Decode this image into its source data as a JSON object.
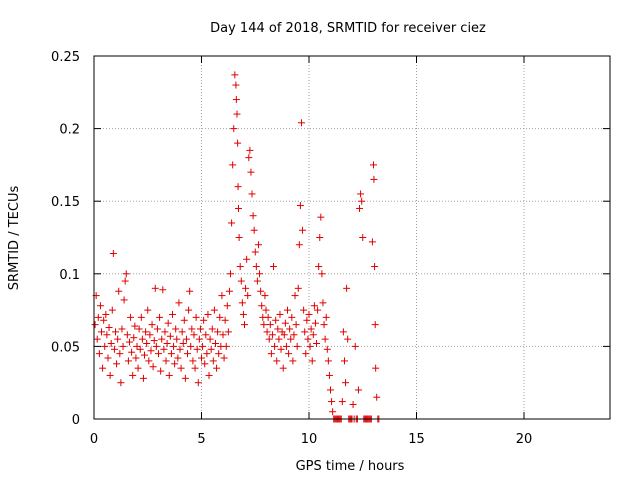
{
  "chart_data": {
    "type": "scatter",
    "title": "Day 144 of 2018, SRMTID for receiver ciez",
    "xlabel": "GPS time / hours",
    "ylabel": "SRMTID / TECUs",
    "xlim": [
      0,
      24
    ],
    "ylim": [
      0,
      0.25
    ],
    "xticks": [
      0,
      5,
      10,
      15,
      20
    ],
    "xtick_labels": [
      "0",
      "5",
      "10",
      "15",
      "20"
    ],
    "yticks": [
      0,
      0.05,
      0.1,
      0.15,
      0.2,
      0.25
    ],
    "ytick_labels": [
      "0",
      "0.05",
      "0.1",
      "0.15",
      "0.2",
      "0.25"
    ],
    "grid": true,
    "marker": "plus",
    "color": "#e00000",
    "series": [
      {
        "name": "SRMTID",
        "points": [
          [
            0.05,
            0.065
          ],
          [
            0.1,
            0.085
          ],
          [
            0.15,
            0.055
          ],
          [
            0.2,
            0.07
          ],
          [
            0.25,
            0.045
          ],
          [
            0.3,
            0.078
          ],
          [
            0.35,
            0.06
          ],
          [
            0.4,
            0.035
          ],
          [
            0.45,
            0.068
          ],
          [
            0.5,
            0.05
          ],
          [
            0.55,
            0.072
          ],
          [
            0.6,
            0.058
          ],
          [
            0.65,
            0.042
          ],
          [
            0.7,
            0.063
          ],
          [
            0.75,
            0.03
          ],
          [
            0.8,
            0.052
          ],
          [
            0.85,
            0.075
          ],
          [
            0.9,
            0.114
          ],
          [
            0.95,
            0.048
          ],
          [
            1.0,
            0.06
          ],
          [
            1.05,
            0.038
          ],
          [
            1.1,
            0.055
          ],
          [
            1.15,
            0.088
          ],
          [
            1.2,
            0.045
          ],
          [
            1.25,
            0.025
          ],
          [
            1.3,
            0.062
          ],
          [
            1.35,
            0.05
          ],
          [
            1.4,
            0.082
          ],
          [
            1.45,
            0.095
          ],
          [
            1.5,
            0.1
          ],
          [
            1.55,
            0.058
          ],
          [
            1.6,
            0.04
          ],
          [
            1.65,
            0.053
          ],
          [
            1.7,
            0.07
          ],
          [
            1.75,
            0.046
          ],
          [
            1.8,
            0.03
          ],
          [
            1.85,
            0.056
          ],
          [
            1.9,
            0.064
          ],
          [
            1.95,
            0.042
          ],
          [
            2.0,
            0.05
          ],
          [
            2.05,
            0.035
          ],
          [
            2.1,
            0.062
          ],
          [
            2.15,
            0.048
          ],
          [
            2.2,
            0.07
          ],
          [
            2.25,
            0.055
          ],
          [
            2.3,
            0.028
          ],
          [
            2.35,
            0.044
          ],
          [
            2.4,
            0.06
          ],
          [
            2.45,
            0.052
          ],
          [
            2.5,
            0.075
          ],
          [
            2.55,
            0.04
          ],
          [
            2.6,
            0.058
          ],
          [
            2.65,
            0.047
          ],
          [
            2.7,
            0.065
          ],
          [
            2.75,
            0.036
          ],
          [
            2.8,
            0.054
          ],
          [
            2.85,
            0.09
          ],
          [
            2.9,
            0.05
          ],
          [
            2.95,
            0.062
          ],
          [
            3.0,
            0.045
          ],
          [
            3.05,
            0.07
          ],
          [
            3.1,
            0.033
          ],
          [
            3.15,
            0.055
          ],
          [
            3.2,
            0.089
          ],
          [
            3.25,
            0.048
          ],
          [
            3.3,
            0.06
          ],
          [
            3.35,
            0.04
          ],
          [
            3.4,
            0.052
          ],
          [
            3.45,
            0.066
          ],
          [
            3.5,
            0.03
          ],
          [
            3.55,
            0.057
          ],
          [
            3.6,
            0.045
          ],
          [
            3.65,
            0.072
          ],
          [
            3.7,
            0.05
          ],
          [
            3.75,
            0.038
          ],
          [
            3.8,
            0.062
          ],
          [
            3.85,
            0.055
          ],
          [
            3.9,
            0.042
          ],
          [
            3.95,
            0.08
          ],
          [
            4.0,
            0.048
          ],
          [
            4.05,
            0.035
          ],
          [
            4.1,
            0.06
          ],
          [
            4.15,
            0.052
          ],
          [
            4.2,
            0.068
          ],
          [
            4.25,
            0.028
          ],
          [
            4.3,
            0.055
          ],
          [
            4.35,
            0.045
          ],
          [
            4.4,
            0.075
          ],
          [
            4.45,
            0.088
          ],
          [
            4.5,
            0.05
          ],
          [
            4.55,
            0.062
          ],
          [
            4.6,
            0.04
          ],
          [
            4.65,
            0.058
          ],
          [
            4.7,
            0.035
          ],
          [
            4.75,
            0.07
          ],
          [
            4.8,
            0.048
          ],
          [
            4.85,
            0.025
          ],
          [
            4.9,
            0.055
          ],
          [
            4.95,
            0.062
          ],
          [
            5.0,
            0.042
          ],
          [
            5.05,
            0.05
          ],
          [
            5.1,
            0.068
          ],
          [
            5.15,
            0.038
          ],
          [
            5.2,
            0.058
          ],
          [
            5.25,
            0.045
          ],
          [
            5.3,
            0.072
          ],
          [
            5.35,
            0.03
          ],
          [
            5.4,
            0.055
          ],
          [
            5.45,
            0.048
          ],
          [
            5.5,
            0.062
          ],
          [
            5.55,
            0.04
          ],
          [
            5.6,
            0.075
          ],
          [
            5.65,
            0.052
          ],
          [
            5.7,
            0.035
          ],
          [
            5.75,
            0.06
          ],
          [
            5.8,
            0.045
          ],
          [
            5.85,
            0.07
          ],
          [
            5.9,
            0.05
          ],
          [
            5.95,
            0.085
          ],
          [
            6.0,
            0.058
          ],
          [
            6.05,
            0.042
          ],
          [
            6.1,
            0.068
          ],
          [
            6.15,
            0.05
          ],
          [
            6.2,
            0.078
          ],
          [
            6.25,
            0.06
          ],
          [
            6.3,
            0.088
          ],
          [
            6.35,
            0.1
          ],
          [
            6.4,
            0.135
          ],
          [
            6.45,
            0.175
          ],
          [
            6.5,
            0.2
          ],
          [
            6.55,
            0.237
          ],
          [
            6.6,
            0.23
          ],
          [
            6.62,
            0.22
          ],
          [
            6.65,
            0.21
          ],
          [
            6.68,
            0.19
          ],
          [
            6.7,
            0.16
          ],
          [
            6.72,
            0.145
          ],
          [
            6.75,
            0.125
          ],
          [
            6.8,
            0.105
          ],
          [
            6.85,
            0.095
          ],
          [
            6.9,
            0.08
          ],
          [
            6.95,
            0.072
          ],
          [
            7.0,
            0.065
          ],
          [
            7.05,
            0.09
          ],
          [
            7.1,
            0.11
          ],
          [
            7.15,
            0.085
          ],
          [
            7.2,
            0.18
          ],
          [
            7.25,
            0.185
          ],
          [
            7.3,
            0.17
          ],
          [
            7.35,
            0.155
          ],
          [
            7.4,
            0.14
          ],
          [
            7.45,
            0.13
          ],
          [
            7.5,
            0.115
          ],
          [
            7.55,
            0.105
          ],
          [
            7.6,
            0.095
          ],
          [
            7.65,
            0.12
          ],
          [
            7.7,
            0.1
          ],
          [
            7.75,
            0.088
          ],
          [
            7.8,
            0.078
          ],
          [
            7.85,
            0.07
          ],
          [
            7.9,
            0.065
          ],
          [
            7.95,
            0.085
          ],
          [
            8.0,
            0.075
          ],
          [
            8.05,
            0.06
          ],
          [
            8.1,
            0.07
          ],
          [
            8.15,
            0.055
          ],
          [
            8.2,
            0.065
          ],
          [
            8.25,
            0.045
          ],
          [
            8.3,
            0.058
          ],
          [
            8.35,
            0.105
          ],
          [
            8.4,
            0.05
          ],
          [
            8.45,
            0.068
          ],
          [
            8.5,
            0.04
          ],
          [
            8.55,
            0.062
          ],
          [
            8.6,
            0.055
          ],
          [
            8.65,
            0.072
          ],
          [
            8.7,
            0.048
          ],
          [
            8.75,
            0.06
          ],
          [
            8.8,
            0.035
          ],
          [
            8.85,
            0.058
          ],
          [
            8.9,
            0.066
          ],
          [
            8.95,
            0.05
          ],
          [
            9.0,
            0.075
          ],
          [
            9.05,
            0.045
          ],
          [
            9.1,
            0.062
          ],
          [
            9.15,
            0.055
          ],
          [
            9.2,
            0.07
          ],
          [
            9.25,
            0.04
          ],
          [
            9.3,
            0.058
          ],
          [
            9.35,
            0.085
          ],
          [
            9.4,
            0.065
          ],
          [
            9.45,
            0.05
          ],
          [
            9.5,
            0.09
          ],
          [
            9.55,
            0.12
          ],
          [
            9.6,
            0.147
          ],
          [
            9.65,
            0.204
          ],
          [
            9.7,
            0.13
          ],
          [
            9.75,
            0.075
          ],
          [
            9.8,
            0.06
          ],
          [
            9.85,
            0.045
          ],
          [
            9.9,
            0.068
          ],
          [
            9.95,
            0.055
          ],
          [
            10.0,
            0.072
          ],
          [
            10.05,
            0.05
          ],
          [
            10.1,
            0.062
          ],
          [
            10.15,
            0.04
          ],
          [
            10.2,
            0.058
          ],
          [
            10.25,
            0.078
          ],
          [
            10.3,
            0.066
          ],
          [
            10.35,
            0.052
          ],
          [
            10.4,
            0.075
          ],
          [
            10.45,
            0.105
          ],
          [
            10.5,
            0.125
          ],
          [
            10.55,
            0.139
          ],
          [
            10.6,
            0.1
          ],
          [
            10.65,
            0.08
          ],
          [
            10.7,
            0.065
          ],
          [
            10.75,
            0.055
          ],
          [
            10.8,
            0.07
          ],
          [
            10.85,
            0.048
          ],
          [
            10.9,
            0.04
          ],
          [
            10.95,
            0.03
          ],
          [
            11.0,
            0.02
          ],
          [
            11.05,
            0.012
          ],
          [
            11.1,
            0.005
          ],
          [
            11.15,
            0.0
          ],
          [
            11.2,
            0.0
          ],
          [
            11.25,
            0.0
          ],
          [
            11.3,
            0.0
          ],
          [
            11.35,
            0.0
          ],
          [
            11.4,
            0.0
          ],
          [
            11.45,
            0.0
          ],
          [
            11.5,
            0.0
          ],
          [
            11.55,
            0.012
          ],
          [
            11.6,
            0.06
          ],
          [
            11.65,
            0.04
          ],
          [
            11.7,
            0.025
          ],
          [
            11.75,
            0.09
          ],
          [
            11.8,
            0.055
          ],
          [
            11.85,
            0.0
          ],
          [
            11.9,
            0.0
          ],
          [
            11.95,
            0.0
          ],
          [
            12.0,
            0.0
          ],
          [
            12.05,
            0.01
          ],
          [
            12.1,
            0.0
          ],
          [
            12.15,
            0.05
          ],
          [
            12.2,
            0.0
          ],
          [
            12.25,
            0.0
          ],
          [
            12.3,
            0.02
          ],
          [
            12.35,
            0.145
          ],
          [
            12.4,
            0.155
          ],
          [
            12.45,
            0.15
          ],
          [
            12.5,
            0.125
          ],
          [
            12.55,
            0.0
          ],
          [
            12.6,
            0.0
          ],
          [
            12.65,
            0.0
          ],
          [
            12.7,
            0.0
          ],
          [
            12.75,
            0.0
          ],
          [
            12.8,
            0.0
          ],
          [
            12.85,
            0.0
          ],
          [
            12.9,
            0.0
          ],
          [
            12.95,
            0.122
          ],
          [
            13.0,
            0.175
          ],
          [
            13.02,
            0.165
          ],
          [
            13.05,
            0.105
          ],
          [
            13.08,
            0.065
          ],
          [
            13.1,
            0.035
          ],
          [
            13.15,
            0.015
          ],
          [
            13.2,
            0.0
          ],
          [
            13.25,
            0.0
          ]
        ]
      }
    ]
  }
}
